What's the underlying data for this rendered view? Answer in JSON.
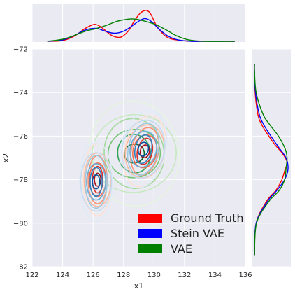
{
  "chart_data": {
    "type": "kde-jointplot",
    "xlabel": "x1",
    "ylabel": "x2",
    "xlim": [
      122,
      136
    ],
    "ylim": [
      -82,
      -72
    ],
    "x_ticks": [
      "122",
      "124",
      "126",
      "128",
      "130",
      "132",
      "134",
      "136"
    ],
    "y_ticks": [
      "−72",
      "−74",
      "−76",
      "−78",
      "−80",
      "−82"
    ],
    "grid": true,
    "legend_position": "bottom-right",
    "series": [
      {
        "name": "Ground Truth",
        "color": "#ff0000",
        "contour_cmap": "Reds",
        "clusters": [
          {
            "center": [
              126.3,
              -78.0
            ],
            "spread": [
              0.35,
              0.55
            ]
          },
          {
            "center": [
              129.4,
              -76.7
            ],
            "spread": [
              0.5,
              0.55
            ]
          }
        ],
        "x_marginal": {
          "x": [
            123.0,
            124.0,
            124.8,
            125.4,
            125.9,
            126.2,
            126.6,
            127.2,
            127.8,
            128.3,
            128.7,
            129.1,
            129.5,
            129.8,
            130.2,
            130.8,
            131.5,
            132.5,
            133.5,
            135.3
          ],
          "density": [
            0.0,
            0.01,
            0.08,
            0.18,
            0.24,
            0.25,
            0.2,
            0.09,
            0.06,
            0.15,
            0.3,
            0.42,
            0.46,
            0.4,
            0.22,
            0.07,
            0.02,
            0.0,
            0.0,
            0.0
          ]
        },
        "y_marginal": {
          "y": [
            -81.5,
            -80.0,
            -79.0,
            -78.5,
            -78.0,
            -77.6,
            -77.2,
            -76.8,
            -76.4,
            -76.0,
            -75.5,
            -75.0,
            -74.0,
            -73.0,
            -72.7
          ],
          "density": [
            0.0,
            0.05,
            0.35,
            0.62,
            0.8,
            0.88,
            0.95,
            0.82,
            0.6,
            0.42,
            0.22,
            0.1,
            0.02,
            0.0,
            0.0
          ]
        }
      },
      {
        "name": "Stein VAE",
        "color": "#0000ff",
        "contour_cmap": "Blues",
        "clusters": [
          {
            "center": [
              126.2,
              -78.1
            ],
            "spread": [
              0.4,
              0.6
            ]
          },
          {
            "center": [
              129.3,
              -76.6
            ],
            "spread": [
              0.55,
              0.6
            ]
          }
        ],
        "x_marginal": {
          "x": [
            123.0,
            124.0,
            124.8,
            125.4,
            125.9,
            126.3,
            126.8,
            127.4,
            128.0,
            128.5,
            129.0,
            129.4,
            129.8,
            130.3,
            130.9,
            131.6,
            132.5,
            133.5,
            135.3
          ],
          "density": [
            0.0,
            0.02,
            0.09,
            0.16,
            0.19,
            0.19,
            0.15,
            0.12,
            0.15,
            0.22,
            0.3,
            0.34,
            0.3,
            0.19,
            0.08,
            0.02,
            0.0,
            0.0,
            0.0
          ]
        },
        "y_marginal": {
          "y": [
            -81.5,
            -80.0,
            -79.0,
            -78.5,
            -78.0,
            -77.5,
            -77.0,
            -76.5,
            -76.0,
            -75.5,
            -75.0,
            -74.0,
            -73.0,
            -72.7
          ],
          "density": [
            0.0,
            0.05,
            0.38,
            0.65,
            0.88,
            0.98,
            0.92,
            0.7,
            0.48,
            0.28,
            0.14,
            0.03,
            0.0,
            0.0
          ]
        }
      },
      {
        "name": "VAE",
        "color": "#008000",
        "contour_cmap": "Greens",
        "clusters": [
          {
            "center": [
              128.7,
              -76.8
            ],
            "spread": [
              1.1,
              0.8
            ]
          }
        ],
        "x_marginal": {
          "x": [
            123.0,
            124.0,
            124.8,
            125.5,
            126.2,
            126.9,
            127.6,
            128.3,
            128.8,
            129.4,
            130.1,
            130.8,
            131.5,
            132.3,
            133.3,
            135.3
          ],
          "density": [
            0.0,
            0.03,
            0.09,
            0.15,
            0.19,
            0.24,
            0.3,
            0.33,
            0.33,
            0.3,
            0.25,
            0.17,
            0.08,
            0.02,
            0.0,
            0.0
          ]
        },
        "y_marginal": {
          "y": [
            -81.5,
            -80.0,
            -79.0,
            -78.5,
            -78.0,
            -77.5,
            -77.0,
            -76.6,
            -76.0,
            -75.5,
            -75.0,
            -74.0,
            -73.0,
            -72.7
          ],
          "density": [
            0.0,
            0.06,
            0.42,
            0.72,
            0.88,
            0.92,
            0.95,
            0.9,
            0.7,
            0.46,
            0.25,
            0.05,
            0.0,
            0.0
          ]
        }
      }
    ]
  }
}
